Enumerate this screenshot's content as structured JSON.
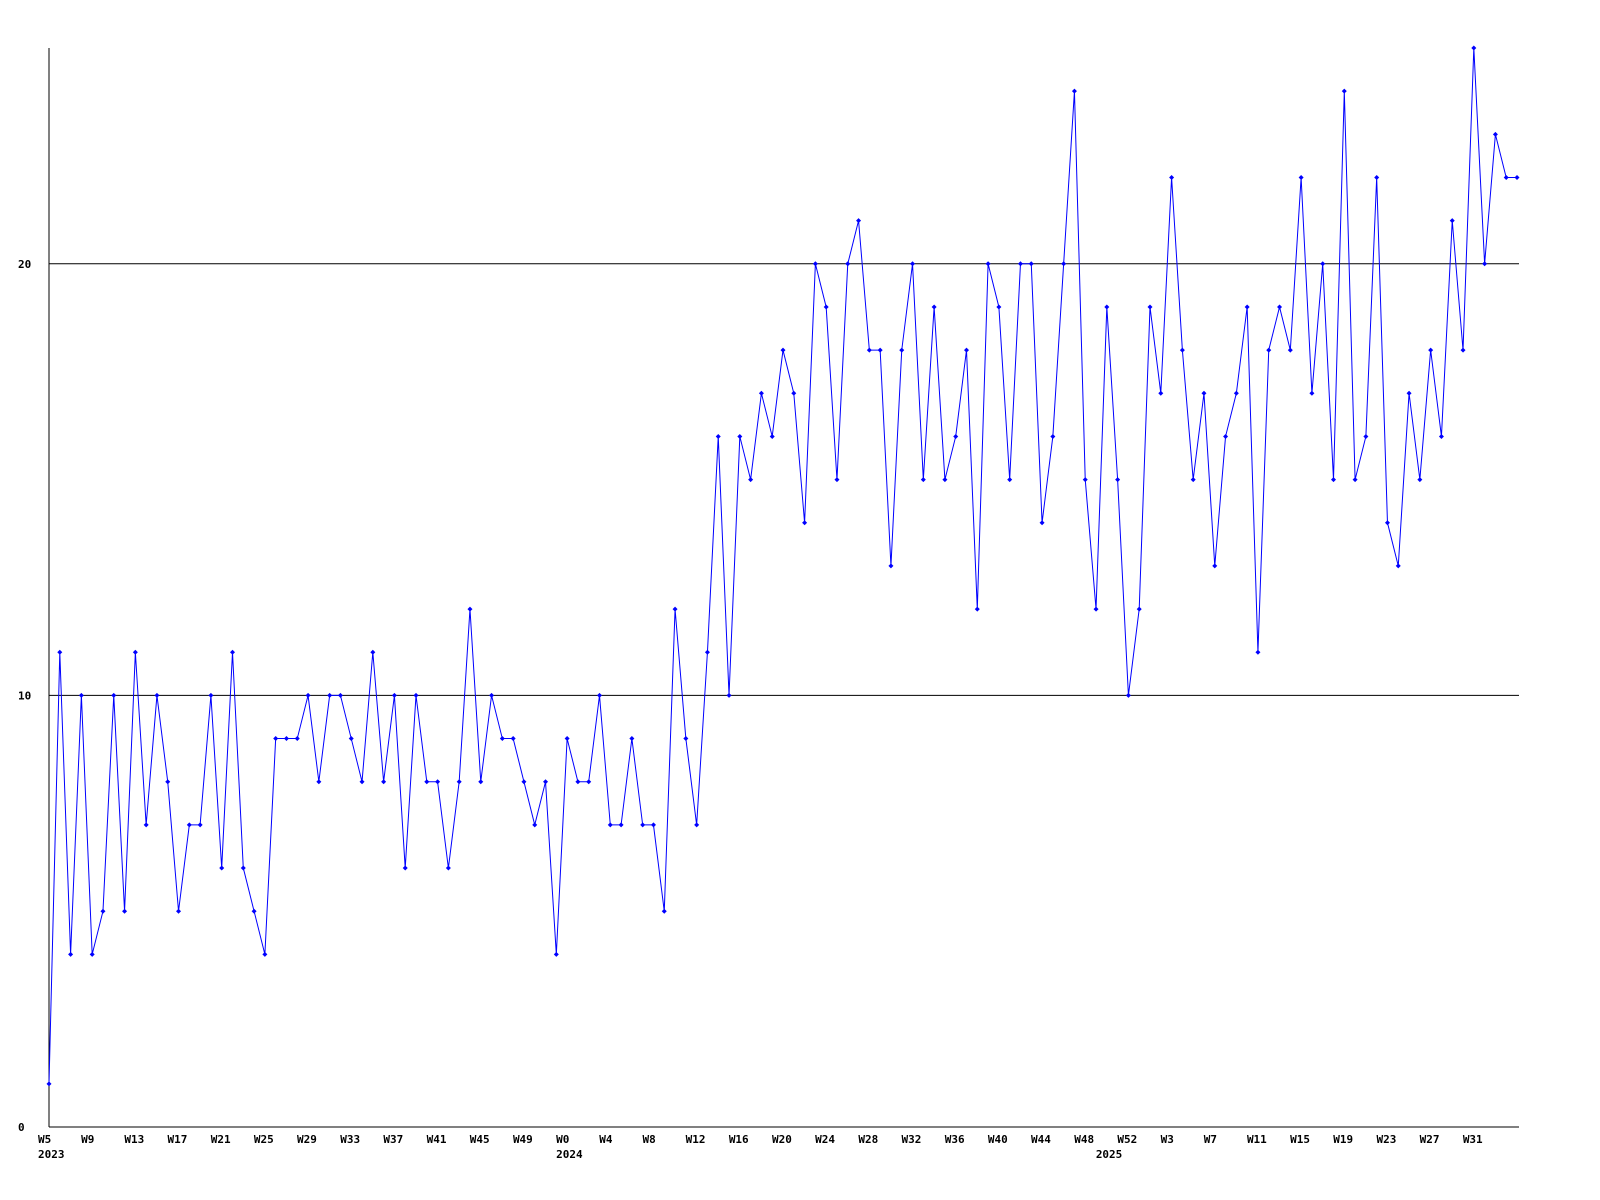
{
  "chart_data": {
    "type": "line",
    "color": "#0000ff",
    "grid": true,
    "ylim": [
      0,
      25
    ],
    "yticks": [
      0,
      10,
      20
    ],
    "categories": [
      "W5",
      null,
      null,
      null,
      "W9",
      null,
      null,
      null,
      "W13",
      null,
      null,
      null,
      "W17",
      null,
      null,
      null,
      "W21",
      null,
      null,
      null,
      "W25",
      null,
      null,
      null,
      "W29",
      null,
      null,
      null,
      "W33",
      null,
      null,
      null,
      "W37",
      null,
      null,
      null,
      "W41",
      null,
      null,
      null,
      "W45",
      null,
      null,
      null,
      "W49",
      null,
      null,
      null,
      "W0",
      null,
      null,
      null,
      "W4",
      null,
      null,
      null,
      "W8",
      null,
      null,
      null,
      "W12",
      null,
      null,
      null,
      "W16",
      null,
      null,
      null,
      "W20",
      null,
      null,
      null,
      "W24",
      null,
      null,
      null,
      "W28",
      null,
      null,
      null,
      "W32",
      null,
      null,
      null,
      "W36",
      null,
      null,
      null,
      "W40",
      null,
      null,
      null,
      "W44",
      null,
      null,
      null,
      "W48",
      null,
      null,
      null,
      "W52",
      null,
      null,
      null,
      "W3",
      null,
      null,
      null,
      "W7",
      null,
      null,
      null,
      "W11",
      null,
      null,
      null,
      "W15",
      null,
      null,
      null,
      "W19",
      null,
      null,
      null,
      "W23",
      null,
      null,
      null,
      "W27",
      null,
      null,
      null,
      "W31",
      null,
      null,
      null,
      null
    ],
    "year_labels": [
      "2023",
      null,
      null,
      null,
      null,
      null,
      null,
      null,
      null,
      null,
      null,
      null,
      null,
      null,
      null,
      null,
      null,
      null,
      null,
      null,
      null,
      null,
      null,
      null,
      null,
      null,
      null,
      null,
      null,
      null,
      null,
      null,
      null,
      null,
      null,
      null,
      null,
      null,
      null,
      null,
      null,
      null,
      null,
      null,
      null,
      null,
      null,
      null,
      "2024",
      null,
      null,
      null,
      null,
      null,
      null,
      null,
      null,
      null,
      null,
      null,
      null,
      null,
      null,
      null,
      null,
      null,
      null,
      null,
      null,
      null,
      null,
      null,
      null,
      null,
      null,
      null,
      null,
      null,
      null,
      null,
      null,
      null,
      null,
      null,
      null,
      null,
      null,
      null,
      null,
      null,
      null,
      null,
      null,
      null,
      null,
      null,
      null,
      null,
      "2025",
      null,
      null,
      null,
      null,
      null,
      null,
      null,
      null,
      null,
      null,
      null,
      null,
      null,
      null,
      null,
      null,
      null,
      null,
      null,
      null,
      null,
      null,
      null,
      null,
      null,
      null,
      null,
      null,
      null,
      null,
      null,
      null,
      null,
      null,
      null,
      null
    ],
    "values": [
      1,
      11,
      4,
      10,
      4,
      5,
      10,
      5,
      11,
      7,
      10,
      8,
      5,
      7,
      7,
      10,
      6,
      11,
      6,
      5,
      4,
      9,
      9,
      9,
      10,
      8,
      10,
      10,
      9,
      8,
      11,
      8,
      10,
      6,
      10,
      8,
      8,
      6,
      8,
      12,
      8,
      10,
      9,
      9,
      8,
      7,
      8,
      4,
      9,
      8,
      8,
      10,
      7,
      7,
      9,
      7,
      7,
      5,
      12,
      9,
      7,
      11,
      16,
      10,
      16,
      15,
      17,
      16,
      18,
      17,
      14,
      20,
      19,
      15,
      20,
      21,
      18,
      18,
      13,
      18,
      20,
      15,
      19,
      15,
      16,
      18,
      12,
      20,
      19,
      15,
      20,
      20,
      14,
      16,
      20,
      24,
      15,
      12,
      19,
      15,
      10,
      12,
      19,
      17,
      22,
      18,
      15,
      17,
      13,
      16,
      17,
      19,
      11,
      18,
      19,
      18,
      22,
      17,
      20,
      15,
      24,
      15,
      16,
      22,
      14,
      13,
      17,
      15,
      18,
      16,
      21,
      18,
      25,
      20,
      23,
      22,
      22
    ]
  }
}
